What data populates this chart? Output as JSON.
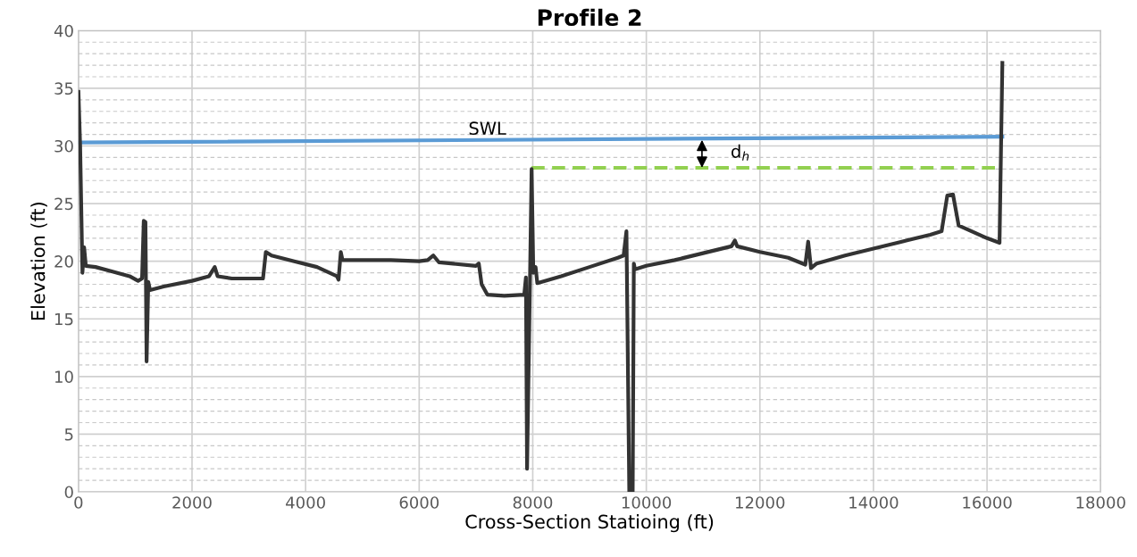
{
  "chart_data": {
    "type": "line",
    "title": "Profile 2",
    "xlabel": "Cross-Section Statioing (ft)",
    "ylabel": "Elevation (ft)",
    "xlim": [
      0,
      18000
    ],
    "xticks": [
      0,
      2000,
      4000,
      6000,
      8000,
      10000,
      12000,
      14000,
      16000,
      18000
    ],
    "ylim": [
      0,
      40
    ],
    "yticks": [
      0,
      5,
      10,
      15,
      20,
      25,
      30,
      35,
      40
    ],
    "grid": true,
    "marker": "none",
    "series": [
      {
        "color": "#333333",
        "line_style": "solid",
        "x": [
          0,
          30,
          70,
          100,
          130,
          300,
          600,
          900,
          1050,
          1120,
          1150,
          1180,
          1200,
          1230,
          1260,
          1500,
          2000,
          2300,
          2400,
          2450,
          2700,
          3000,
          3250,
          3300,
          3400,
          3800,
          4200,
          4550,
          4580,
          4620,
          4650,
          5500,
          6000,
          6150,
          6250,
          6350,
          7000,
          7050,
          7100,
          7200,
          7500,
          7850,
          7880,
          7900,
          7950,
          7980,
          8010,
          8050,
          8080,
          8500,
          9000,
          9500,
          9600,
          9650,
          9700,
          9760,
          9780,
          9800,
          10000,
          10500,
          11000,
          11500,
          11560,
          11600,
          12000,
          12500,
          12800,
          12850,
          12900,
          13000,
          13500,
          14000,
          14500,
          15000,
          15200,
          15300,
          15400,
          15500,
          16000,
          16220,
          16270
        ],
        "values": [
          34.7,
          30,
          19.0,
          21.2,
          19.6,
          19.5,
          19.1,
          18.7,
          18.3,
          18.5,
          23.5,
          23.4,
          11.3,
          18.2,
          17.5,
          17.8,
          18.3,
          18.7,
          19.5,
          18.7,
          18.5,
          18.5,
          18.5,
          20.8,
          20.5,
          20.0,
          19.5,
          18.7,
          18.4,
          20.8,
          20.1,
          20.1,
          20.0,
          20.1,
          20.5,
          19.9,
          19.6,
          19.8,
          18.0,
          17.1,
          17.0,
          17.1,
          18.6,
          2.0,
          18.0,
          28.0,
          19.0,
          19.5,
          18.1,
          18.7,
          19.5,
          20.3,
          20.5,
          22.6,
          0,
          0,
          19.8,
          19.3,
          19.6,
          20.1,
          20.7,
          21.3,
          21.8,
          21.3,
          20.8,
          20.3,
          19.7,
          21.7,
          19.4,
          19.8,
          20.5,
          21.1,
          21.7,
          22.3,
          22.6,
          25.7,
          25.8,
          23.1,
          22.0,
          21.6,
          37.2
        ]
      },
      {
        "color": "#5b9bd5",
        "line_style": "solid",
        "x": [
          0,
          16270
        ],
        "values": [
          30.3,
          30.8
        ]
      },
      {
        "color": "#92d050",
        "line_style": "dashed",
        "x": [
          7980,
          16200
        ],
        "values": [
          28.1,
          28.1
        ]
      }
    ],
    "annotations": [
      "SWL",
      "d$_{h}$"
    ]
  }
}
